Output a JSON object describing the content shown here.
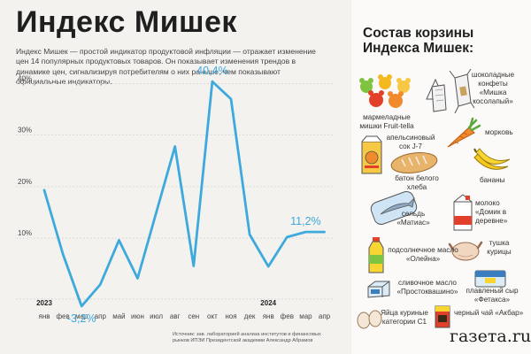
{
  "header": {
    "title": "Индекс Мишек",
    "subtitle": "Индекс Мишек — простой индикатор продуктовой инфляции — отражает изменение цен 14 популярных продуктовых товаров. Он показывает изменения трендов в динамике цен, сигнализируя потребителям о них раньше, чем показывают официальные индикаторы."
  },
  "chart_data": {
    "type": "line",
    "categories": [
      "янв",
      "фев",
      "мар",
      "апр",
      "май",
      "июн",
      "июл",
      "авг",
      "сен",
      "окт",
      "ноя",
      "дек",
      "янв",
      "фев",
      "мар",
      "апр"
    ],
    "year_labels": [
      {
        "index": 0,
        "label": "2023"
      },
      {
        "index": 12,
        "label": "2024"
      }
    ],
    "series": [
      {
        "values": [
          19.3,
          6.9,
          -3.2,
          1.0,
          9.6,
          2.2,
          15.0,
          27.8,
          4.6,
          40.4,
          37.0,
          10.7,
          4.5,
          10.2,
          11.2,
          11.2
        ]
      }
    ],
    "y_ticks": [
      10,
      20,
      30,
      40
    ],
    "y_tick_labels": [
      "10%",
      "20%",
      "30%",
      "40%"
    ],
    "ylim": [
      -4.5,
      46
    ],
    "annotations": [
      {
        "index": 9,
        "label": "40,4%"
      },
      {
        "index": 2,
        "label": "-3,2%"
      },
      {
        "index": 14,
        "label": "11,2%"
      }
    ],
    "line_color": "#3ea9dc",
    "grid": true
  },
  "source": "Источник: зав. лабораторией анализа институтов и финансовых рынков ИПЭИ Президентской академии Александр Абрамов",
  "basket": {
    "title": "Состав корзины Индекса Мишек:",
    "items": [
      {
        "label": "мармеладные мишки Fruit-tella",
        "icon": "gummy-bears-icon"
      },
      {
        "label": "шоколадные конфеты «Мишка косолапый»",
        "icon": "chocolate-candy-icon"
      },
      {
        "label": "апельсиновый сок J-7",
        "icon": "juice-icon"
      },
      {
        "label": "морковь",
        "icon": "carrot-icon"
      },
      {
        "label": "батон белого хлеба",
        "icon": "bread-icon"
      },
      {
        "label": "бананы",
        "icon": "banana-icon"
      },
      {
        "label": "сельдь «Матиас»",
        "icon": "herring-icon"
      },
      {
        "label": "молоко «Домик в деревне»",
        "icon": "milk-icon"
      },
      {
        "label": "подсолнечное масло «Олейна»",
        "icon": "oil-icon"
      },
      {
        "label": "тушка курицы",
        "icon": "chicken-icon"
      },
      {
        "label": "сливочное масло «Простоквашино»",
        "icon": "butter-icon"
      },
      {
        "label": "плавленый сыр «Фетакса»",
        "icon": "cheese-icon"
      },
      {
        "label": "Яйца куриные категории С1",
        "icon": "eggs-icon"
      },
      {
        "label": "черный чай «Акбар»",
        "icon": "tea-icon"
      }
    ]
  },
  "brand": "газета.ru"
}
